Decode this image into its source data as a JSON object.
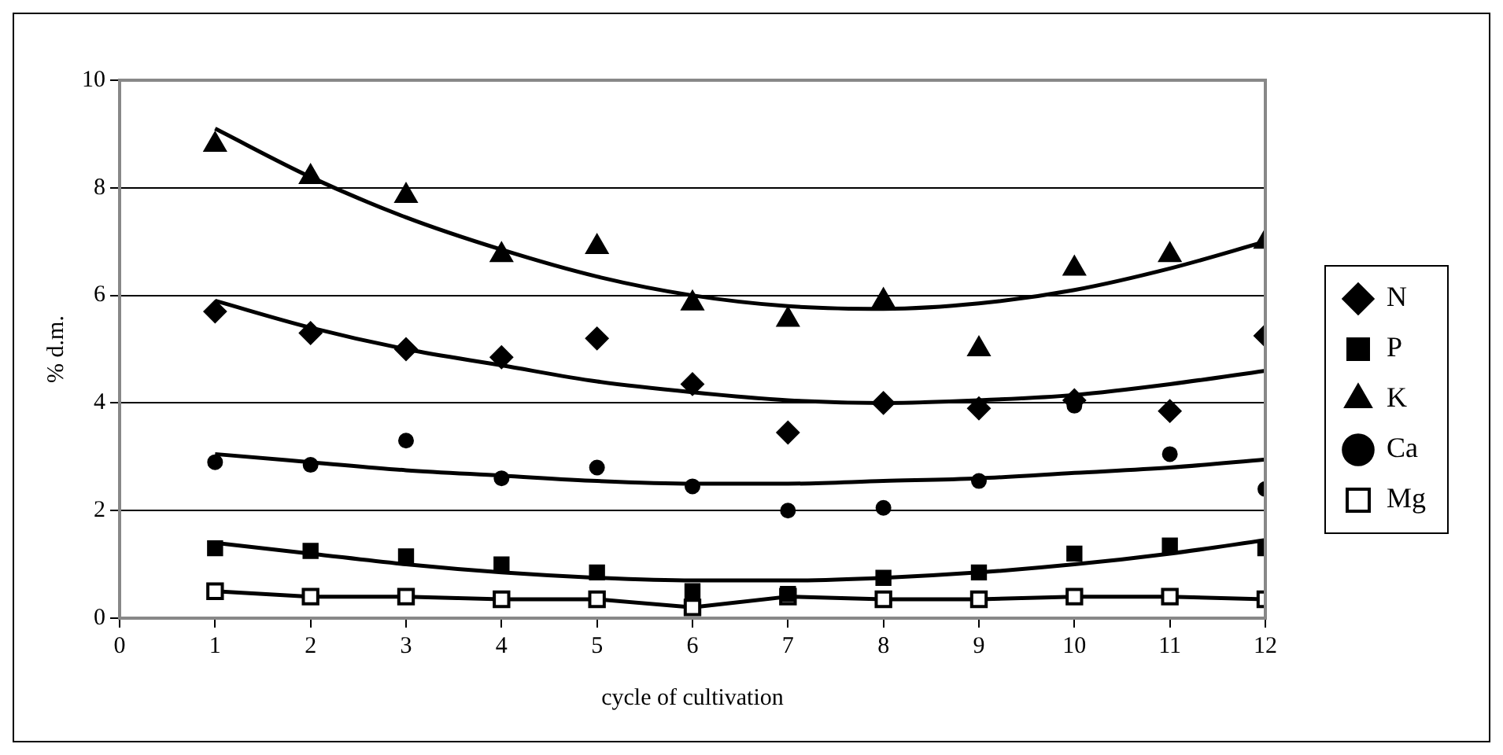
{
  "chart_data": {
    "type": "scatter",
    "xlabel": "cycle of cultivation",
    "ylabel": "% d.m.",
    "x": [
      1,
      2,
      3,
      4,
      5,
      6,
      7,
      8,
      9,
      10,
      11,
      12
    ],
    "xlim": [
      0,
      12
    ],
    "xticks": [
      0,
      1,
      2,
      3,
      4,
      5,
      6,
      7,
      8,
      9,
      10,
      11,
      12
    ],
    "ylim": [
      0,
      10
    ],
    "yticks": [
      0,
      2,
      4,
      6,
      8,
      10
    ],
    "grid": "y",
    "legend": "right",
    "series": [
      {
        "name": "N",
        "color": "#000000",
        "marker": "diamond",
        "values": [
          5.7,
          5.3,
          5.0,
          4.85,
          5.2,
          4.35,
          3.45,
          4.0,
          3.9,
          4.05,
          3.85,
          5.25
        ]
      },
      {
        "name": "P",
        "color": "#000000",
        "marker": "square",
        "values": [
          1.3,
          1.25,
          1.15,
          1.0,
          0.85,
          0.5,
          0.45,
          0.75,
          0.85,
          1.2,
          1.35,
          1.3
        ]
      },
      {
        "name": "K",
        "color": "#000000",
        "marker": "triangle",
        "values": [
          8.8,
          8.2,
          7.85,
          6.75,
          6.9,
          5.85,
          5.55,
          5.9,
          5.0,
          6.5,
          6.75,
          7.0
        ]
      },
      {
        "name": "Ca",
        "color": "#000000",
        "marker": "circle",
        "values": [
          2.9,
          2.85,
          3.3,
          2.6,
          2.8,
          2.45,
          2.0,
          2.05,
          2.55,
          3.95,
          3.05,
          2.4
        ]
      },
      {
        "name": "Mg",
        "type": "line",
        "color": "#000000",
        "marker": "square",
        "line_style": "solid",
        "values": [
          0.5,
          0.4,
          0.4,
          0.35,
          0.35,
          0.2,
          0.4,
          0.35,
          0.35,
          0.4,
          0.4,
          0.35
        ]
      },
      {
        "type": "line",
        "color": "#000000",
        "marker": "none",
        "x": [
          1,
          2,
          3,
          4,
          5,
          6,
          7,
          8,
          9,
          10,
          11,
          12
        ],
        "values": [
          9.1,
          8.2,
          7.45,
          6.85,
          6.35,
          6.0,
          5.8,
          5.75,
          5.85,
          6.1,
          6.5,
          7.0
        ]
      },
      {
        "type": "line",
        "color": "#000000",
        "marker": "none",
        "x": [
          1,
          2,
          3,
          4,
          5,
          6,
          7,
          8,
          9,
          10,
          11,
          12
        ],
        "values": [
          5.9,
          5.4,
          5.0,
          4.7,
          4.4,
          4.2,
          4.05,
          4.0,
          4.05,
          4.15,
          4.35,
          4.6
        ]
      },
      {
        "type": "line",
        "color": "#000000",
        "marker": "none",
        "x": [
          1,
          2,
          3,
          4,
          5,
          6,
          7,
          8,
          9,
          10,
          11,
          12
        ],
        "values": [
          3.05,
          2.9,
          2.75,
          2.65,
          2.55,
          2.5,
          2.5,
          2.55,
          2.6,
          2.7,
          2.8,
          2.95
        ]
      },
      {
        "type": "line",
        "color": "#000000",
        "marker": "none",
        "x": [
          1,
          2,
          3,
          4,
          5,
          6,
          7,
          8,
          9,
          10,
          11,
          12
        ],
        "values": [
          1.4,
          1.2,
          1.0,
          0.85,
          0.75,
          0.7,
          0.7,
          0.75,
          0.85,
          1.0,
          1.2,
          1.45
        ]
      }
    ]
  }
}
